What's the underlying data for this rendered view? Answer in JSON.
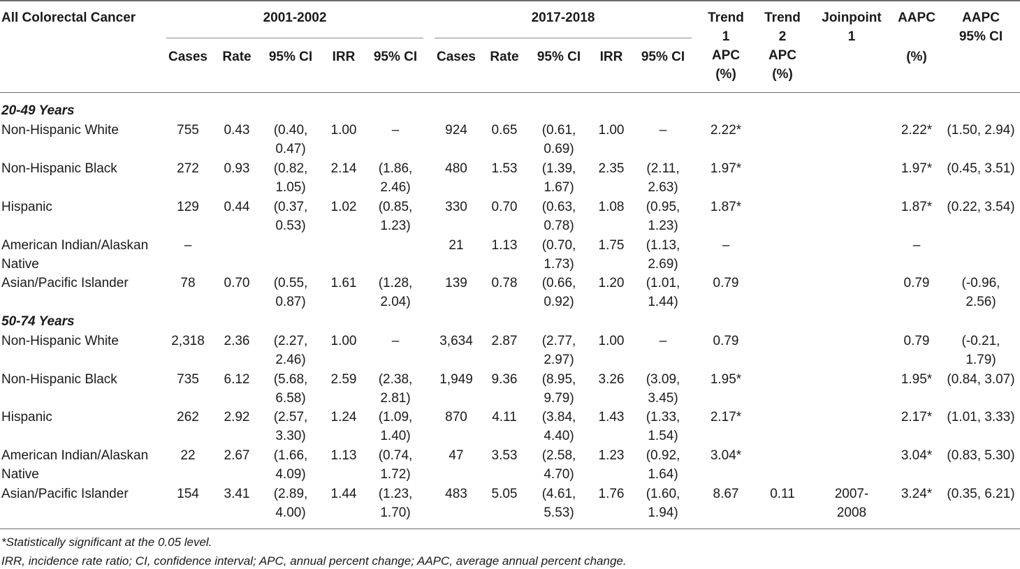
{
  "title": "All Colorectal Cancer",
  "period1": "2001-2002",
  "period2": "2017-2018",
  "headers": {
    "cases": "Cases",
    "rate": "Rate",
    "ci": "95% CI",
    "irr": "IRR",
    "trend1": "Trend\n1\nAPC\n(%)",
    "trend2": "Trend\n2\nAPC\n(%)",
    "joinpoint": "Joinpoint\n1",
    "aapc_a": "AAPC",
    "aapc_b": "(%)",
    "aapc_ci": "AAPC\n95% CI"
  },
  "sections": [
    {
      "label": "20-49 Years",
      "rows": [
        {
          "group": "Non-Hispanic White",
          "c1": "755",
          "r1": "0.43",
          "ci1": "(0.40,\n0.47)",
          "irr1": "1.00",
          "irrci1": "–",
          "c2": "924",
          "r2": "0.65",
          "ci2": "(0.61,\n0.69)",
          "irr2": "1.00",
          "irrci2": "–",
          "t1": "2.22*",
          "t2": "",
          "jp": "",
          "aapc": "2.22*",
          "aapcci": "(1.50, 2.94)"
        },
        {
          "group": "Non-Hispanic Black",
          "c1": "272",
          "r1": "0.93",
          "ci1": "(0.82,\n1.05)",
          "irr1": "2.14",
          "irrci1": "(1.86,\n2.46)",
          "c2": "480",
          "r2": "1.53",
          "ci2": "(1.39,\n1.67)",
          "irr2": "2.35",
          "irrci2": "(2.11,\n2.63)",
          "t1": "1.97*",
          "t2": "",
          "jp": "",
          "aapc": "1.97*",
          "aapcci": "(0.45, 3.51)"
        },
        {
          "group": "Hispanic",
          "c1": "129",
          "r1": "0.44",
          "ci1": "(0.37,\n0.53)",
          "irr1": "1.02",
          "irrci1": "(0.85,\n1.23)",
          "c2": "330",
          "r2": "0.70",
          "ci2": "(0.63,\n0.78)",
          "irr2": "1.08",
          "irrci2": "(0.95,\n1.23)",
          "t1": "1.87*",
          "t2": "",
          "jp": "",
          "aapc": "1.87*",
          "aapcci": "(0.22, 3.54)"
        },
        {
          "group": "American Indian/Alaskan\nNative",
          "c1": "–",
          "r1": "",
          "ci1": "",
          "irr1": "",
          "irrci1": "",
          "c2": "21",
          "r2": "1.13",
          "ci2": "(0.70,\n1.73)",
          "irr2": "1.75",
          "irrci2": "(1.13,\n2.69)",
          "t1": "–",
          "t2": "",
          "jp": "",
          "aapc": "–",
          "aapcci": ""
        },
        {
          "group": "Asian/Pacific Islander",
          "c1": "78",
          "r1": "0.70",
          "ci1": "(0.55,\n0.87)",
          "irr1": "1.61",
          "irrci1": "(1.28,\n2.04)",
          "c2": "139",
          "r2": "0.78",
          "ci2": "(0.66,\n0.92)",
          "irr2": "1.20",
          "irrci2": "(1.01,\n1.44)",
          "t1": "0.79",
          "t2": "",
          "jp": "",
          "aapc": "0.79",
          "aapcci": "(-0.96,\n2.56)"
        }
      ]
    },
    {
      "label": "50-74 Years",
      "rows": [
        {
          "group": "Non-Hispanic White",
          "c1": "2,318",
          "r1": "2.36",
          "ci1": "(2.27,\n2.46)",
          "irr1": "1.00",
          "irrci1": "–",
          "c2": "3,634",
          "r2": "2.87",
          "ci2": "(2.77,\n2.97)",
          "irr2": "1.00",
          "irrci2": "–",
          "t1": "0.79",
          "t2": "",
          "jp": "",
          "aapc": "0.79",
          "aapcci": "(-0.21,\n1.79)"
        },
        {
          "group": "Non-Hispanic Black",
          "c1": "735",
          "r1": "6.12",
          "ci1": "(5.68,\n6.58)",
          "irr1": "2.59",
          "irrci1": "(2.38,\n2.81)",
          "c2": "1,949",
          "r2": "9.36",
          "ci2": "(8.95,\n9.79)",
          "irr2": "3.26",
          "irrci2": "(3.09,\n3.45)",
          "t1": "1.95*",
          "t2": "",
          "jp": "",
          "aapc": "1.95*",
          "aapcci": "(0.84, 3.07)"
        },
        {
          "group": "Hispanic",
          "c1": "262",
          "r1": "2.92",
          "ci1": "(2.57,\n3.30)",
          "irr1": "1.24",
          "irrci1": "(1.09,\n1.40)",
          "c2": "870",
          "r2": "4.11",
          "ci2": "(3.84,\n4.40)",
          "irr2": "1.43",
          "irrci2": "(1.33,\n1.54)",
          "t1": "2.17*",
          "t2": "",
          "jp": "",
          "aapc": "2.17*",
          "aapcci": "(1.01, 3.33)"
        },
        {
          "group": "American Indian/Alaskan\nNative",
          "c1": "22",
          "r1": "2.67",
          "ci1": "(1.66,\n4.09)",
          "irr1": "1.13",
          "irrci1": "(0.74,\n1.72)",
          "c2": "47",
          "r2": "3.53",
          "ci2": "(2.58,\n4.70)",
          "irr2": "1.23",
          "irrci2": "(0.92,\n1.64)",
          "t1": "3.04*",
          "t2": "",
          "jp": "",
          "aapc": "3.04*",
          "aapcci": "(0.83, 5.30)"
        },
        {
          "group": "Asian/Pacific Islander",
          "c1": "154",
          "r1": "3.41",
          "ci1": "(2.89,\n4.00)",
          "irr1": "1.44",
          "irrci1": "(1.23,\n1.70)",
          "c2": "483",
          "r2": "5.05",
          "ci2": "(4.61,\n5.53)",
          "irr2": "1.76",
          "irrci2": "(1.60,\n1.94)",
          "t1": "8.67",
          "t2": "0.11",
          "jp": "2007-\n2008",
          "aapc": "3.24*",
          "aapcci": "(0.35, 6.21)"
        }
      ]
    }
  ],
  "footnotes": [
    "*Statistically significant at the 0.05 level.",
    "IRR, incidence rate ratio; CI, confidence interval; APC, annual percent change; AAPC, average annual percent change."
  ]
}
